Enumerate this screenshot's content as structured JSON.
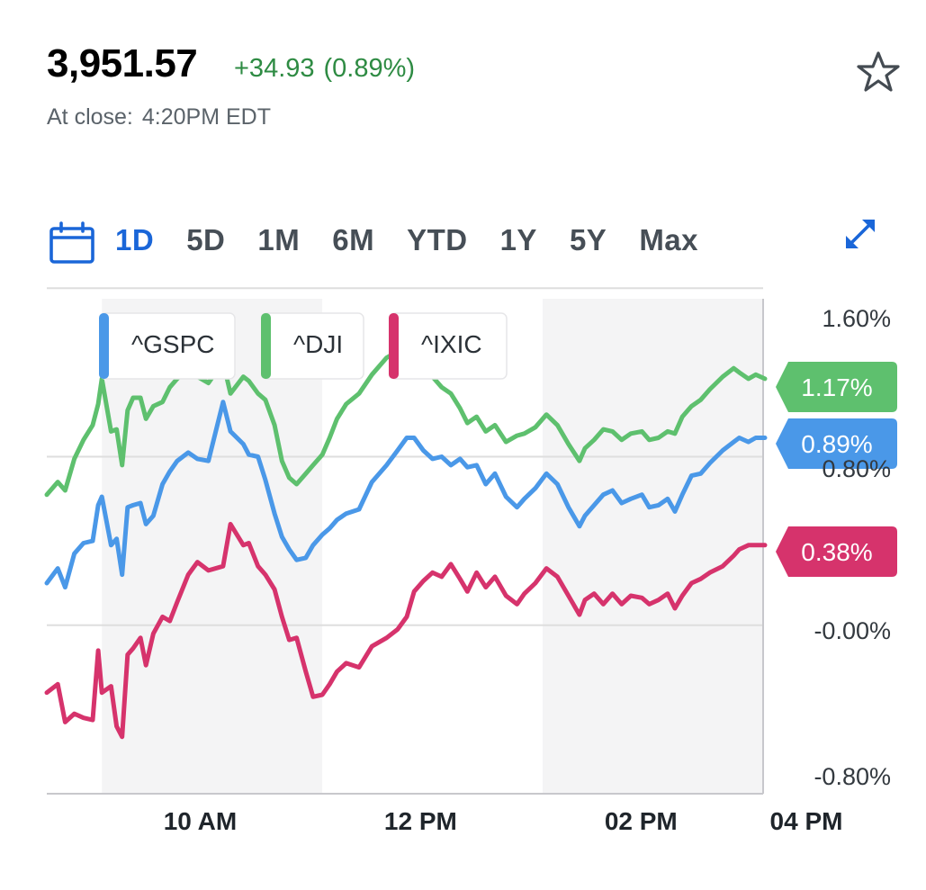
{
  "quote": {
    "price": "3,951.57",
    "change": "+34.93",
    "change_pct": "(0.89%)",
    "close_label": "At close:",
    "close_time": "4:20PM EDT",
    "positive_color": "#2e8b43"
  },
  "icons": {
    "favorite": "star-icon",
    "calendar": "calendar-icon",
    "expand": "expand-icon"
  },
  "ranges": [
    "1D",
    "5D",
    "1M",
    "6M",
    "YTD",
    "1Y",
    "5Y",
    "Max"
  ],
  "active_range": "1D",
  "chart_data": {
    "type": "line",
    "x_ticks": [
      "10 AM",
      "12 PM",
      "02 PM",
      "04 PM"
    ],
    "y_ticks": [
      "1.60%",
      "0.80%",
      "-0.00%",
      "-0.80%"
    ],
    "ylim": [
      -0.8,
      1.6
    ],
    "x_range_minutes": [
      0,
      390
    ],
    "grid": "horizontal lines",
    "legend_position": "top-left",
    "series": [
      {
        "name": "^GSPC",
        "color": "#4a98e8",
        "last_label": "0.89%",
        "t": [
          0,
          6,
          10,
          15,
          20,
          25,
          28,
          30,
          35,
          38,
          41,
          44,
          47,
          51,
          54,
          58,
          63,
          67,
          71,
          77,
          82,
          88,
          96,
          100,
          107,
          110,
          115,
          119,
          124,
          128,
          132,
          136,
          141,
          145,
          150,
          154,
          158,
          163,
          170,
          177,
          185,
          191,
          196,
          200,
          205,
          210,
          215,
          220,
          225,
          229,
          234,
          239,
          244,
          250,
          256,
          260,
          266,
          272,
          278,
          284,
          290,
          293,
          298,
          303,
          308,
          313,
          318,
          324,
          328,
          333,
          338,
          342,
          346,
          351,
          356,
          361,
          368,
          374,
          377,
          382,
          386,
          391
        ],
        "v": [
          0.2,
          0.27,
          0.18,
          0.34,
          0.39,
          0.4,
          0.57,
          0.61,
          0.38,
          0.41,
          0.24,
          0.56,
          0.57,
          0.58,
          0.48,
          0.52,
          0.67,
          0.73,
          0.78,
          0.82,
          0.79,
          0.78,
          1.06,
          0.92,
          0.86,
          0.81,
          0.8,
          0.69,
          0.53,
          0.42,
          0.36,
          0.31,
          0.32,
          0.38,
          0.43,
          0.46,
          0.5,
          0.53,
          0.55,
          0.68,
          0.76,
          0.83,
          0.89,
          0.89,
          0.83,
          0.79,
          0.8,
          0.76,
          0.79,
          0.75,
          0.76,
          0.67,
          0.72,
          0.61,
          0.56,
          0.6,
          0.65,
          0.72,
          0.67,
          0.56,
          0.47,
          0.52,
          0.57,
          0.62,
          0.64,
          0.58,
          0.6,
          0.62,
          0.56,
          0.57,
          0.6,
          0.54,
          0.62,
          0.71,
          0.72,
          0.77,
          0.83,
          0.87,
          0.89,
          0.87,
          0.89,
          0.89
        ]
      },
      {
        "name": "^DJI",
        "color": "#5ec06e",
        "last_label": "1.17%",
        "t": [
          0,
          6,
          10,
          15,
          20,
          25,
          28,
          30,
          35,
          38,
          41,
          44,
          47,
          51,
          54,
          58,
          63,
          67,
          71,
          77,
          82,
          88,
          96,
          100,
          107,
          110,
          115,
          119,
          124,
          128,
          132,
          136,
          141,
          145,
          150,
          154,
          158,
          163,
          170,
          177,
          185,
          191,
          196,
          200,
          205,
          210,
          215,
          220,
          225,
          229,
          234,
          239,
          244,
          250,
          256,
          260,
          266,
          272,
          278,
          284,
          290,
          293,
          298,
          303,
          308,
          313,
          318,
          324,
          328,
          333,
          338,
          342,
          346,
          351,
          356,
          361,
          368,
          374,
          377,
          382,
          386,
          391
        ],
        "v": [
          0.62,
          0.68,
          0.64,
          0.79,
          0.88,
          0.95,
          1.05,
          1.17,
          0.92,
          0.93,
          0.76,
          1.02,
          1.08,
          1.08,
          0.98,
          1.04,
          1.06,
          1.13,
          1.17,
          1.22,
          1.18,
          1.15,
          1.25,
          1.1,
          1.18,
          1.16,
          1.1,
          1.07,
          0.95,
          0.78,
          0.7,
          0.67,
          0.72,
          0.76,
          0.81,
          0.89,
          0.98,
          1.05,
          1.1,
          1.19,
          1.27,
          1.3,
          1.29,
          1.31,
          1.22,
          1.18,
          1.13,
          1.1,
          1.03,
          0.96,
          0.99,
          0.92,
          0.95,
          0.87,
          0.9,
          0.91,
          0.94,
          1.0,
          0.95,
          0.86,
          0.78,
          0.84,
          0.88,
          0.93,
          0.92,
          0.88,
          0.91,
          0.92,
          0.88,
          0.89,
          0.92,
          0.91,
          0.99,
          1.04,
          1.07,
          1.12,
          1.18,
          1.22,
          1.2,
          1.17,
          1.19,
          1.17
        ]
      },
      {
        "name": "^IXIC",
        "color": "#d6336c",
        "last_label": "0.38%",
        "t": [
          0,
          6,
          10,
          15,
          20,
          25,
          28,
          30,
          35,
          38,
          41,
          44,
          47,
          51,
          54,
          58,
          63,
          67,
          71,
          77,
          82,
          88,
          96,
          100,
          107,
          110,
          115,
          119,
          124,
          128,
          132,
          136,
          141,
          145,
          150,
          154,
          158,
          163,
          170,
          177,
          185,
          191,
          196,
          200,
          205,
          210,
          215,
          220,
          225,
          229,
          234,
          239,
          244,
          250,
          256,
          260,
          266,
          272,
          278,
          284,
          290,
          293,
          298,
          303,
          308,
          313,
          318,
          324,
          328,
          333,
          338,
          342,
          346,
          351,
          356,
          361,
          368,
          374,
          377,
          382,
          386,
          391
        ],
        "v": [
          -0.32,
          -0.28,
          -0.46,
          -0.42,
          -0.44,
          -0.45,
          -0.12,
          -0.32,
          -0.29,
          -0.48,
          -0.53,
          -0.14,
          -0.11,
          -0.06,
          -0.19,
          -0.04,
          0.04,
          0.02,
          0.11,
          0.24,
          0.3,
          0.26,
          0.28,
          0.48,
          0.38,
          0.39,
          0.28,
          0.24,
          0.17,
          0.04,
          -0.07,
          -0.06,
          -0.22,
          -0.34,
          -0.33,
          -0.28,
          -0.22,
          -0.18,
          -0.2,
          -0.1,
          -0.06,
          -0.02,
          0.04,
          0.16,
          0.21,
          0.25,
          0.23,
          0.29,
          0.22,
          0.16,
          0.25,
          0.18,
          0.23,
          0.14,
          0.1,
          0.15,
          0.2,
          0.27,
          0.23,
          0.14,
          0.05,
          0.12,
          0.15,
          0.1,
          0.15,
          0.1,
          0.14,
          0.13,
          0.1,
          0.12,
          0.15,
          0.08,
          0.14,
          0.2,
          0.22,
          0.25,
          0.28,
          0.33,
          0.36,
          0.38,
          0.38,
          0.38
        ]
      }
    ]
  }
}
